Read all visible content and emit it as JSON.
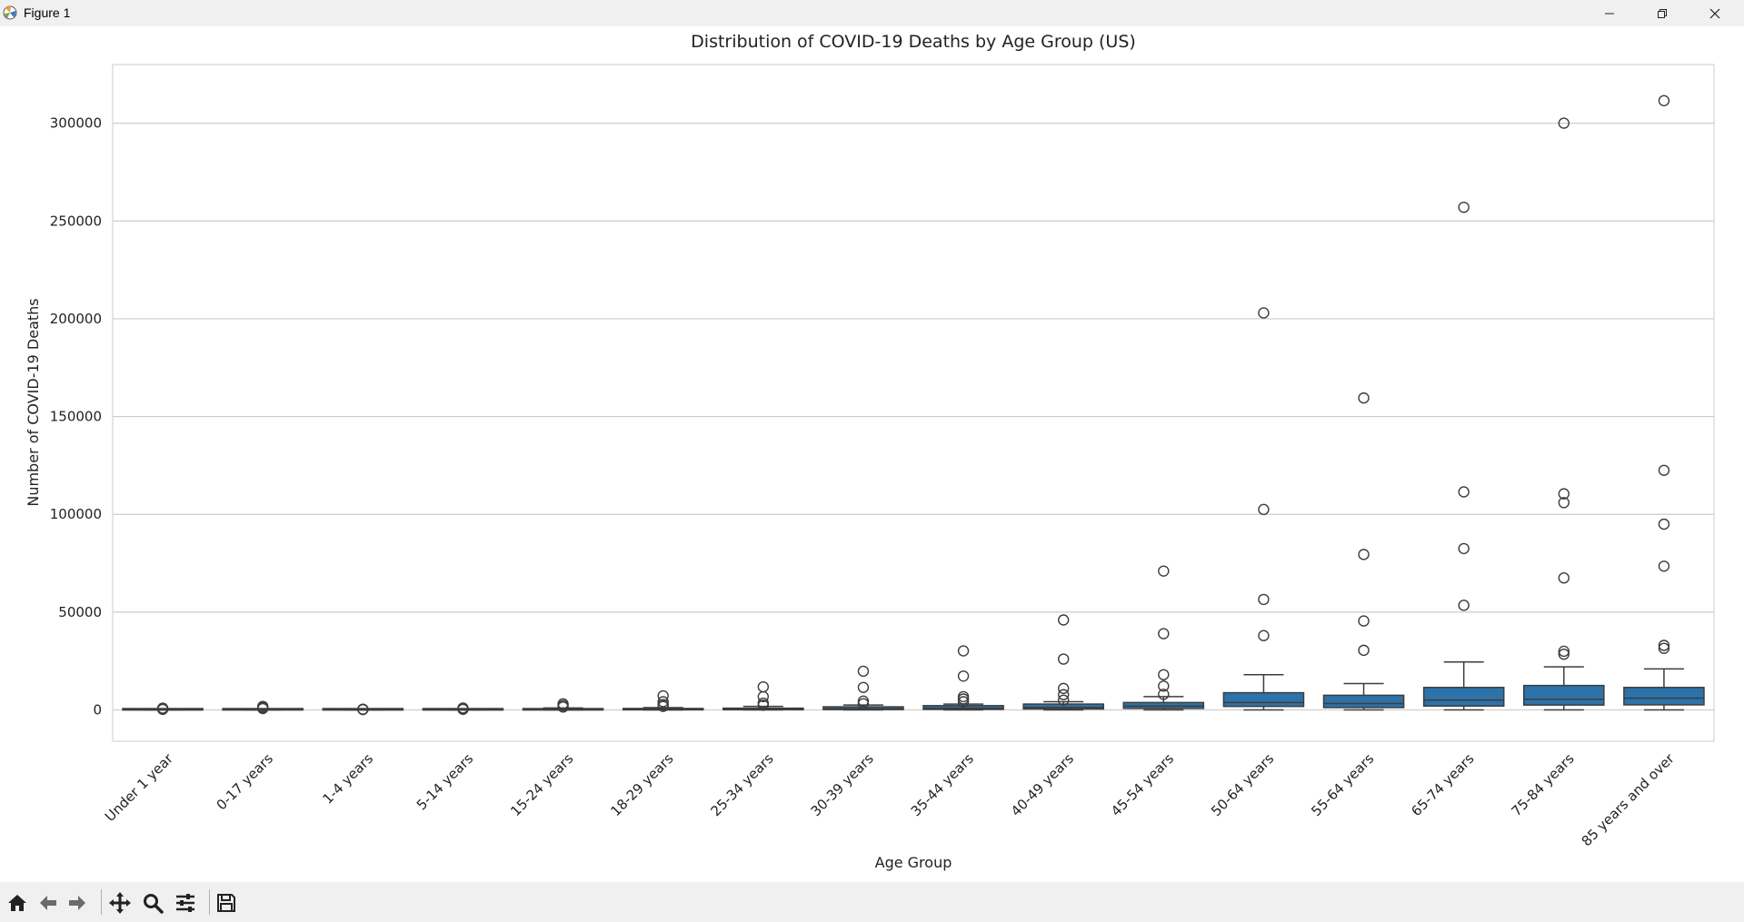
{
  "window": {
    "title": "Figure 1",
    "icon": "matplotlib-icon",
    "controls": [
      "minimize-icon",
      "maximize-icon",
      "close-icon"
    ]
  },
  "toolbar": {
    "buttons": [
      "home-icon",
      "back-icon",
      "forward-icon",
      "pan-icon",
      "zoom-icon",
      "configure-subplots-icon",
      "save-icon"
    ]
  },
  "colors": {
    "box_fill": "#2d72a8",
    "box_edge": "#3d3d3d",
    "grid": "#cccccc",
    "axes_edge": "#cccccc"
  },
  "chart_data": {
    "type": "box",
    "title": "Distribution of COVID-19 Deaths by Age Group (US)",
    "xlabel": "Age Group",
    "ylabel": "Number of COVID-19 Deaths",
    "ylim": [
      -16000,
      330000
    ],
    "yticks": [
      0,
      50000,
      100000,
      150000,
      200000,
      250000,
      300000
    ],
    "ytick_labels": [
      "0",
      "50000",
      "100000",
      "150000",
      "200000",
      "250000",
      "300000"
    ],
    "grid": true,
    "categories": [
      "Under 1 year",
      "0-17 years",
      "1-4 years",
      "5-14 years",
      "15-24 years",
      "18-29 years",
      "25-34 years",
      "30-39 years",
      "35-44 years",
      "40-49 years",
      "45-54 years",
      "50-64 years",
      "55-64 years",
      "65-74 years",
      "75-84 years",
      "85 years and over"
    ],
    "boxes": [
      {
        "whislo": 0,
        "q1": 0,
        "med": 0,
        "q3": 100,
        "whishi": 200,
        "fliers": [
          300,
          600,
          900
        ]
      },
      {
        "whislo": 0,
        "q1": 0,
        "med": 100,
        "q3": 300,
        "whishi": 600,
        "fliers": [
          700,
          1200,
          1800
        ]
      },
      {
        "whislo": 0,
        "q1": 0,
        "med": 0,
        "q3": 50,
        "whishi": 100,
        "fliers": [
          200,
          400
        ]
      },
      {
        "whislo": 0,
        "q1": 0,
        "med": 50,
        "q3": 100,
        "whishi": 200,
        "fliers": [
          300,
          700,
          1000
        ]
      },
      {
        "whislo": 0,
        "q1": 0,
        "med": 100,
        "q3": 500,
        "whishi": 1000,
        "fliers": [
          1500,
          2200,
          3100
        ]
      },
      {
        "whislo": 0,
        "q1": 50,
        "med": 200,
        "q3": 600,
        "whishi": 1200,
        "fliers": [
          1800,
          2800,
          4200,
          7200
        ]
      },
      {
        "whislo": 0,
        "q1": 100,
        "med": 300,
        "q3": 900,
        "whishi": 1800,
        "fliers": [
          2400,
          3500,
          6800,
          11800
        ]
      },
      {
        "whislo": 0,
        "q1": 200,
        "med": 600,
        "q3": 1600,
        "whishi": 2500,
        "fliers": [
          3200,
          4500,
          11500,
          19800
        ]
      },
      {
        "whislo": 0,
        "q1": 300,
        "med": 900,
        "q3": 2200,
        "whishi": 3000,
        "fliers": [
          4200,
          5600,
          6800,
          17300,
          30200
        ]
      },
      {
        "whislo": 0,
        "q1": 500,
        "med": 1300,
        "q3": 3000,
        "whishi": 4200,
        "fliers": [
          5000,
          7800,
          11000,
          26000,
          46000
        ]
      },
      {
        "whislo": 0,
        "q1": 800,
        "med": 2000,
        "q3": 3800,
        "whishi": 6800,
        "fliers": [
          8000,
          12200,
          18000,
          39000,
          71000
        ]
      },
      {
        "whislo": 0,
        "q1": 1800,
        "med": 3800,
        "q3": 8800,
        "whishi": 18000,
        "fliers": [
          38000,
          56500,
          102500,
          203000
        ]
      },
      {
        "whislo": 0,
        "q1": 1200,
        "med": 3300,
        "q3": 7500,
        "whishi": 13500,
        "fliers": [
          30500,
          45500,
          79500,
          159500
        ]
      },
      {
        "whislo": 0,
        "q1": 2000,
        "med": 5000,
        "q3": 11500,
        "whishi": 24500,
        "fliers": [
          53500,
          82500,
          111500,
          257000
        ]
      },
      {
        "whislo": 0,
        "q1": 2500,
        "med": 5500,
        "q3": 12500,
        "whishi": 22000,
        "fliers": [
          28500,
          30000,
          67500,
          106000,
          110500,
          300000
        ]
      },
      {
        "whislo": 0,
        "q1": 2600,
        "med": 6000,
        "q3": 11500,
        "whishi": 21000,
        "fliers": [
          31500,
          33000,
          73500,
          95000,
          122500,
          311500
        ]
      }
    ]
  }
}
